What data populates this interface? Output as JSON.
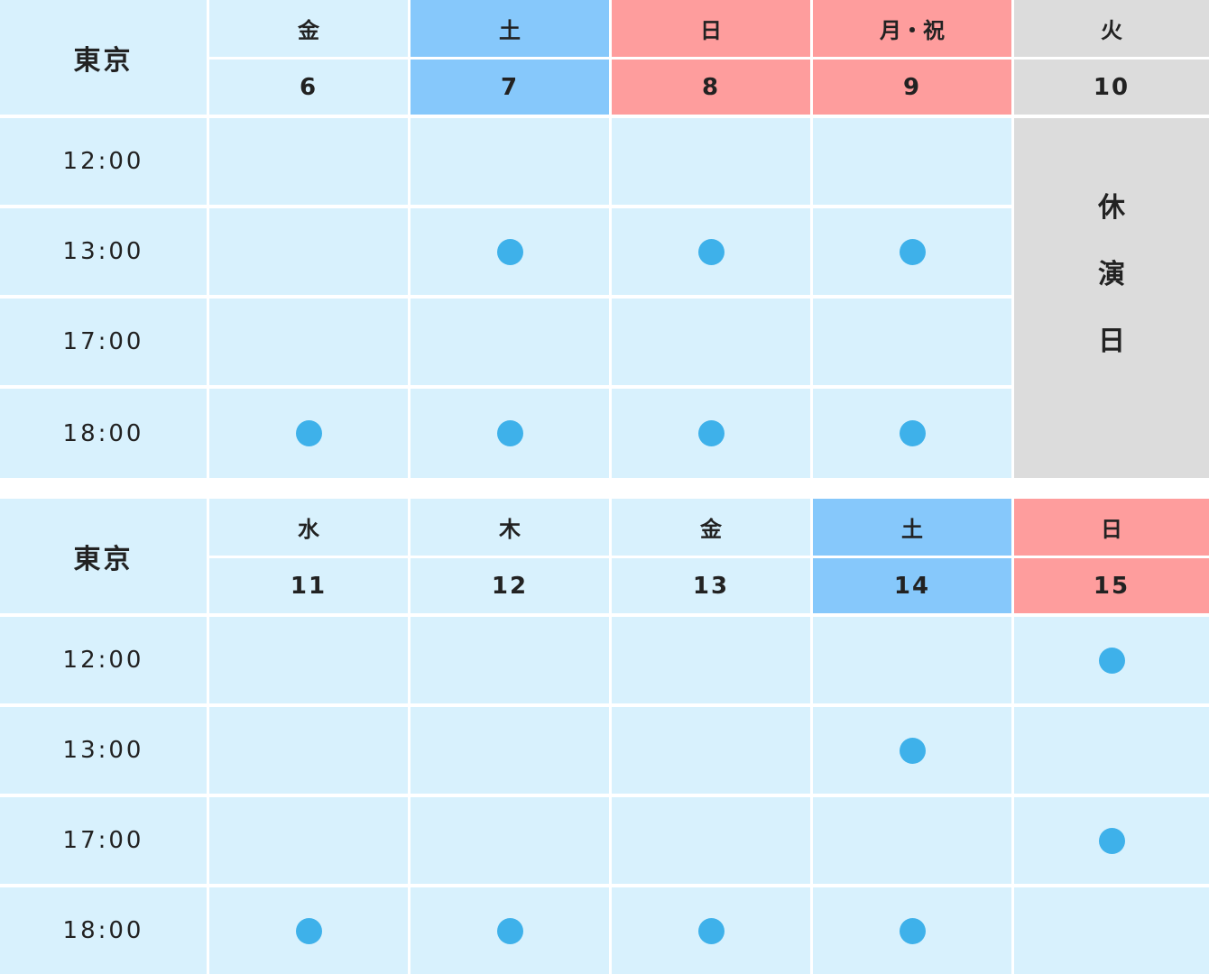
{
  "sections": [
    {
      "venue": "東京",
      "days": [
        {
          "dow": "金",
          "date": "6",
          "type": "weekday"
        },
        {
          "dow": "土",
          "date": "7",
          "type": "sat"
        },
        {
          "dow": "日",
          "date": "8",
          "type": "sun"
        },
        {
          "dow": "月・祝",
          "date": "9",
          "type": "sun"
        },
        {
          "dow": "火",
          "date": "10",
          "type": "off"
        }
      ],
      "times": [
        "12:00",
        "13:00",
        "17:00",
        "18:00"
      ],
      "performances": [
        [
          false,
          false,
          false,
          false,
          null
        ],
        [
          false,
          true,
          true,
          true,
          null
        ],
        [
          false,
          false,
          false,
          false,
          null
        ],
        [
          true,
          true,
          true,
          true,
          null
        ]
      ],
      "closed_label": [
        "休",
        "演",
        "日"
      ]
    },
    {
      "venue": "東京",
      "days": [
        {
          "dow": "水",
          "date": "11",
          "type": "weekday"
        },
        {
          "dow": "木",
          "date": "12",
          "type": "weekday"
        },
        {
          "dow": "金",
          "date": "13",
          "type": "weekday"
        },
        {
          "dow": "土",
          "date": "14",
          "type": "sat"
        },
        {
          "dow": "日",
          "date": "15",
          "type": "sun"
        }
      ],
      "times": [
        "12:00",
        "13:00",
        "17:00",
        "18:00"
      ],
      "performances": [
        [
          false,
          false,
          false,
          false,
          true
        ],
        [
          false,
          false,
          false,
          true,
          false
        ],
        [
          false,
          false,
          false,
          false,
          true
        ],
        [
          true,
          true,
          true,
          true,
          false
        ]
      ]
    }
  ],
  "colors": {
    "weekday": "#d8f1fd",
    "sat": "#86c8fb",
    "sun": "#fe9d9d",
    "off": "#dcdcdc",
    "dot": "#3eb1ea"
  }
}
